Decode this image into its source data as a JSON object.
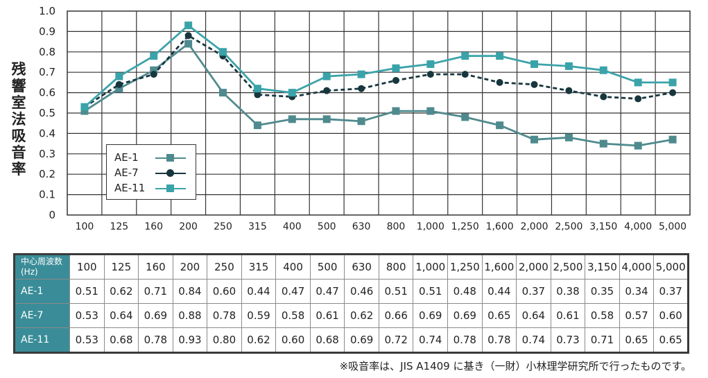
{
  "chart_data": {
    "type": "line",
    "ylabel": "残響室法吸音率",
    "ylim": [
      0,
      1.0
    ],
    "yticks": [
      "0",
      "0.1",
      "0.2",
      "0.3",
      "0.4",
      "0.5",
      "0.6",
      "0.7",
      "0.8",
      "0.9",
      "1.0"
    ],
    "categories": [
      "100",
      "125",
      "160",
      "200",
      "250",
      "315",
      "400",
      "500",
      "630",
      "800",
      "1,000",
      "1,250",
      "1,600",
      "2,000",
      "2,500",
      "3,150",
      "4,000",
      "5,000"
    ],
    "grid": true,
    "legend_position": "lower-left",
    "series": [
      {
        "name": "AE-1",
        "color": "#4f8a8e",
        "marker": "square",
        "dashed": false,
        "values": [
          0.51,
          0.62,
          0.71,
          0.84,
          0.6,
          0.44,
          0.47,
          0.47,
          0.46,
          0.51,
          0.51,
          0.48,
          0.44,
          0.37,
          0.38,
          0.35,
          0.34,
          0.37
        ]
      },
      {
        "name": "AE-7",
        "color": "#17363e",
        "marker": "circle",
        "dashed": true,
        "values": [
          0.53,
          0.64,
          0.69,
          0.88,
          0.78,
          0.59,
          0.58,
          0.61,
          0.62,
          0.66,
          0.69,
          0.69,
          0.65,
          0.64,
          0.61,
          0.58,
          0.57,
          0.6
        ]
      },
      {
        "name": "AE-11",
        "color": "#3aa3a9",
        "marker": "square",
        "dashed": false,
        "values": [
          0.53,
          0.68,
          0.78,
          0.93,
          0.8,
          0.62,
          0.6,
          0.68,
          0.69,
          0.72,
          0.74,
          0.78,
          0.78,
          0.74,
          0.73,
          0.71,
          0.65,
          0.65
        ]
      }
    ]
  },
  "table": {
    "header_label_line1": "中心周波数",
    "header_label_line2": "(Hz)",
    "frequencies": [
      "100",
      "125",
      "160",
      "200",
      "250",
      "315",
      "400",
      "500",
      "630",
      "800",
      "1,000",
      "1,250",
      "1,600",
      "2,000",
      "2,500",
      "3,150",
      "4,000",
      "5,000"
    ],
    "rows": [
      {
        "name": "AE-1",
        "values": [
          "0.51",
          "0.62",
          "0.71",
          "0.84",
          "0.60",
          "0.44",
          "0.47",
          "0.47",
          "0.46",
          "0.51",
          "0.51",
          "0.48",
          "0.44",
          "0.37",
          "0.38",
          "0.35",
          "0.34",
          "0.37"
        ]
      },
      {
        "name": "AE-7",
        "values": [
          "0.53",
          "0.64",
          "0.69",
          "0.88",
          "0.78",
          "0.59",
          "0.58",
          "0.61",
          "0.62",
          "0.66",
          "0.69",
          "0.69",
          "0.65",
          "0.64",
          "0.61",
          "0.58",
          "0.57",
          "0.60"
        ]
      },
      {
        "name": "AE-11",
        "values": [
          "0.53",
          "0.68",
          "0.78",
          "0.93",
          "0.80",
          "0.62",
          "0.60",
          "0.68",
          "0.69",
          "0.72",
          "0.74",
          "0.78",
          "0.78",
          "0.74",
          "0.73",
          "0.71",
          "0.65",
          "0.65"
        ]
      }
    ]
  },
  "footnote": "※吸音率は、JIS A1409 に基き（一財）小林理学研究所で行ったものです。"
}
